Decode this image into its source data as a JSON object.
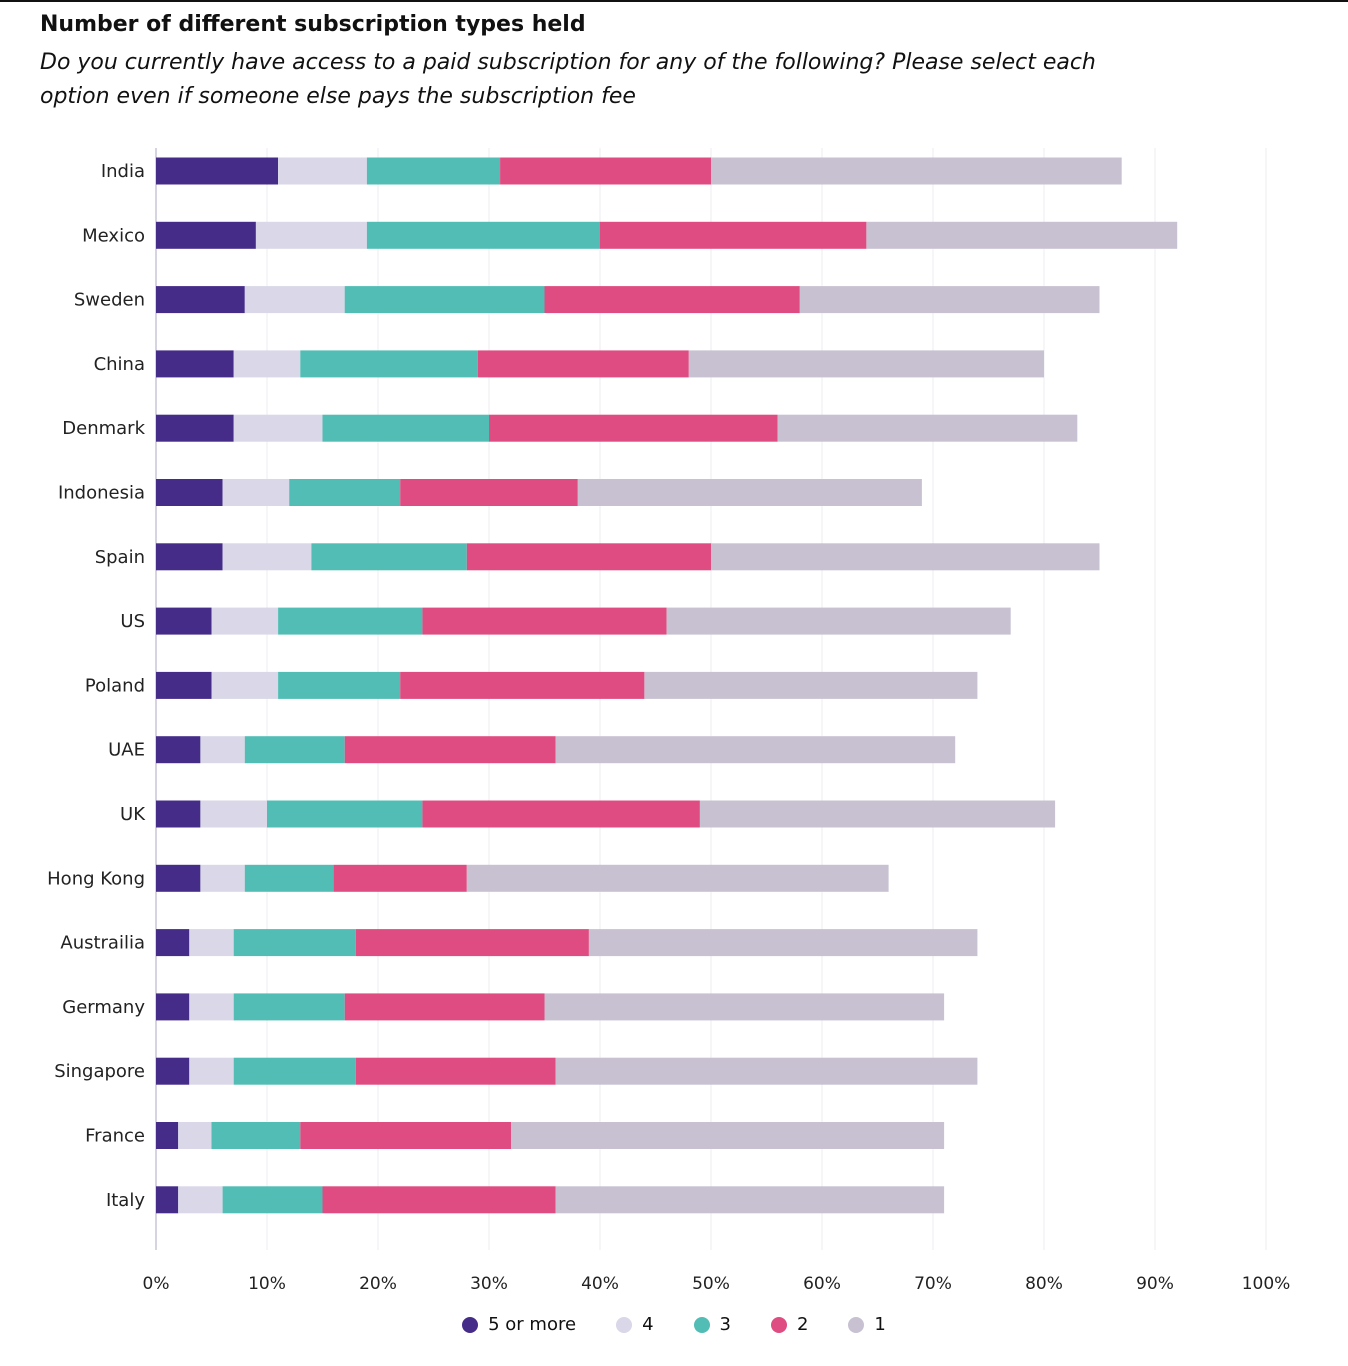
{
  "title": "Number of different subscription types held",
  "subtitle": "Do you currently have access to a paid subscription for any of the following? Please select each option even if someone else pays the subscription fee",
  "chart_data": {
    "type": "bar",
    "orientation": "horizontal",
    "stacked": true,
    "categories": [
      "India",
      "Mexico",
      "Sweden",
      "China",
      "Denmark",
      "Indonesia",
      "Spain",
      "US",
      "Poland",
      "UAE",
      "UK",
      "Hong Kong",
      "Austrailia",
      "Germany",
      "Singapore",
      "France",
      "Italy"
    ],
    "series": [
      {
        "name": "5 or more",
        "color": "#452c88",
        "values": [
          11,
          9,
          8,
          7,
          7,
          6,
          6,
          5,
          5,
          4,
          4,
          4,
          3,
          3,
          3,
          2,
          2
        ]
      },
      {
        "name": "4",
        "color": "#d9d7e8",
        "values": [
          8,
          10,
          9,
          6,
          8,
          6,
          8,
          6,
          6,
          4,
          6,
          4,
          4,
          4,
          4,
          3,
          4
        ]
      },
      {
        "name": "3",
        "color": "#52bdb5",
        "values": [
          12,
          21,
          18,
          16,
          15,
          10,
          14,
          13,
          11,
          9,
          14,
          8,
          11,
          10,
          11,
          8,
          9
        ]
      },
      {
        "name": "2",
        "color": "#df4c81",
        "values": [
          19,
          24,
          23,
          19,
          26,
          16,
          22,
          22,
          22,
          19,
          25,
          12,
          21,
          18,
          18,
          19,
          21
        ]
      },
      {
        "name": "1",
        "color": "#c8c1d2",
        "values": [
          37,
          28,
          27,
          32,
          27,
          31,
          35,
          31,
          30,
          36,
          32,
          38,
          35,
          36,
          38,
          39,
          35
        ]
      }
    ],
    "xlim": [
      0,
      100
    ],
    "xticks": [
      "0%",
      "10%",
      "20%",
      "30%",
      "40%",
      "50%",
      "60%",
      "70%",
      "80%",
      "90%",
      "100%"
    ],
    "grid": "vertical",
    "legend": "bottom-center"
  }
}
